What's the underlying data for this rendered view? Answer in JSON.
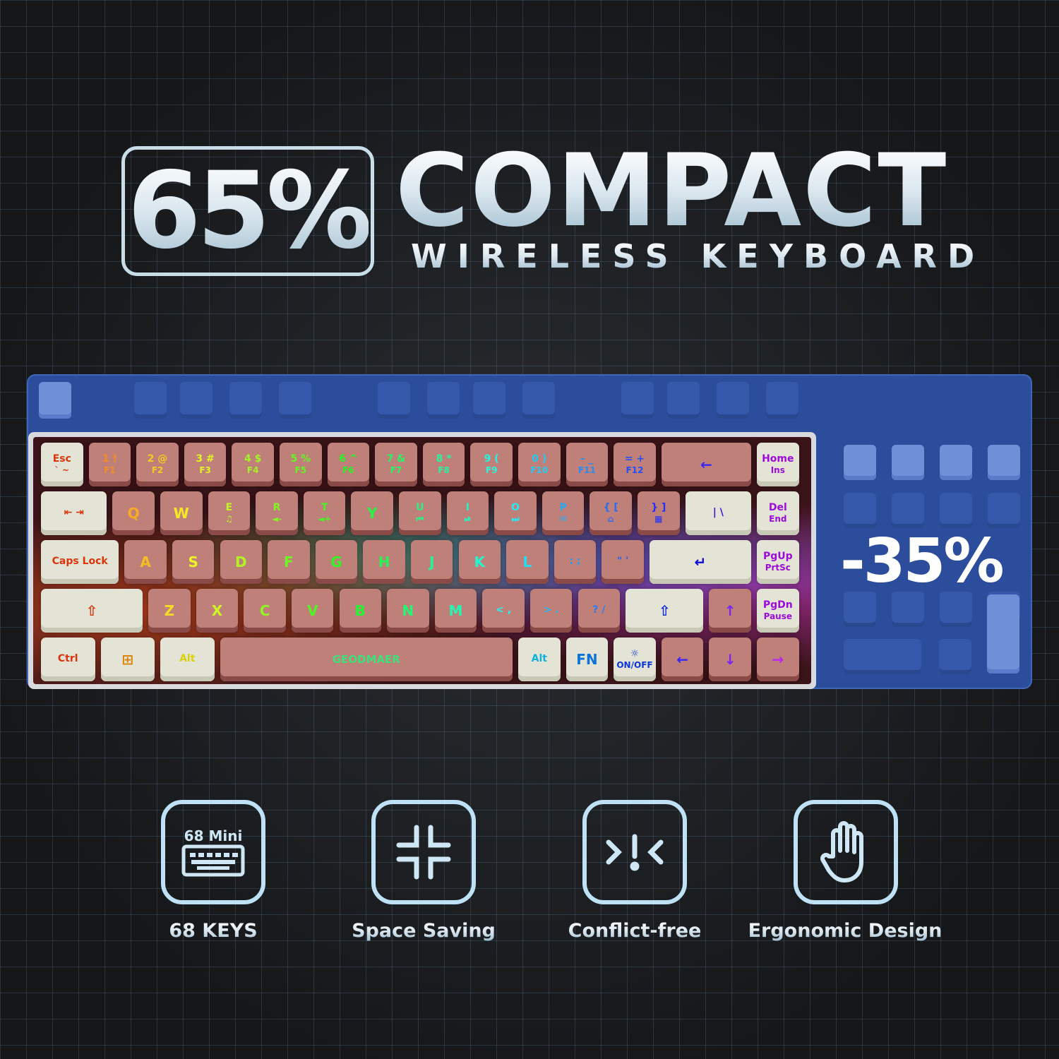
{
  "headline": {
    "percent": "65%",
    "title": "COMPACT",
    "subtitle": "WIRELESS KEYBOARD"
  },
  "size_reduction": "-35%",
  "brand_logo": "GEODMAER",
  "keyboard": {
    "rows": [
      [
        [
          "Esc",
          "` ~"
        ],
        [
          "1 !",
          "F1"
        ],
        [
          "2 @",
          "F2"
        ],
        [
          "3 #",
          "F3"
        ],
        [
          "4 $",
          "F4"
        ],
        [
          "5 %",
          "F5"
        ],
        [
          "6 ^",
          "F6"
        ],
        [
          "7 &",
          "F7"
        ],
        [
          "8 *",
          "F8"
        ],
        [
          "9 (",
          "F9"
        ],
        [
          "0 )",
          "F10"
        ],
        [
          "- _",
          "F11"
        ],
        [
          "= +",
          "F12"
        ],
        [
          "←",
          ""
        ],
        [
          "Home",
          "Ins"
        ]
      ],
      [
        [
          "⇤ ⇥",
          ""
        ],
        [
          "Q",
          ""
        ],
        [
          "W",
          ""
        ],
        [
          "E",
          "♫"
        ],
        [
          "R",
          "◄-"
        ],
        [
          "T",
          "◄+"
        ],
        [
          "Y",
          ""
        ],
        [
          "U",
          "⏮"
        ],
        [
          "I",
          "⏯"
        ],
        [
          "O",
          "⏭"
        ],
        [
          "P",
          "✉"
        ],
        [
          "{ [",
          "⌂"
        ],
        [
          "} ]",
          "▦"
        ],
        [
          "| \\",
          ""
        ],
        [
          "Del",
          "End"
        ]
      ],
      [
        [
          "Caps Lock",
          ""
        ],
        [
          "A",
          ""
        ],
        [
          "S",
          ""
        ],
        [
          "D",
          ""
        ],
        [
          "F",
          ""
        ],
        [
          "G",
          ""
        ],
        [
          "H",
          ""
        ],
        [
          "J",
          ""
        ],
        [
          "K",
          ""
        ],
        [
          "L",
          ""
        ],
        [
          ": ;",
          ""
        ],
        [
          "\" '",
          ""
        ],
        [
          "↵",
          ""
        ],
        [
          "PgUp",
          "PrtSc"
        ]
      ],
      [
        [
          "⇧",
          ""
        ],
        [
          "Z",
          ""
        ],
        [
          "X",
          ""
        ],
        [
          "C",
          ""
        ],
        [
          "V",
          ""
        ],
        [
          "B",
          ""
        ],
        [
          "N",
          ""
        ],
        [
          "M",
          ""
        ],
        [
          "< ,",
          ""
        ],
        [
          "> .",
          ""
        ],
        [
          "? /",
          ""
        ],
        [
          "⇧",
          ""
        ],
        [
          "↑",
          ""
        ],
        [
          "PgDn",
          "Pause"
        ]
      ],
      [
        [
          "Ctrl",
          ""
        ],
        [
          "⊞",
          ""
        ],
        [
          "Alt",
          ""
        ],
        [
          "",
          ""
        ],
        [
          "Alt",
          ""
        ],
        [
          "FN",
          ""
        ],
        [
          "☼",
          "ON/OFF"
        ],
        [
          "←",
          ""
        ],
        [
          "↓",
          ""
        ],
        [
          "→",
          ""
        ]
      ]
    ]
  },
  "features": [
    {
      "label": "68 KEYS",
      "icon": "keyboard-icon",
      "icon_text": "68 Mini"
    },
    {
      "label": "Space Saving",
      "icon": "compress-icon"
    },
    {
      "label": "Conflict-free",
      "icon": "conflict-free-icon"
    },
    {
      "label": "Ergonomic Design",
      "icon": "hand-icon"
    }
  ],
  "colors": {
    "background": "#151719",
    "accent_blue": "#2c4d9c",
    "keycap_pink": "#c0807a",
    "keycap_cream": "#e4e4d6",
    "icon_outline": "#bfe1f5"
  }
}
